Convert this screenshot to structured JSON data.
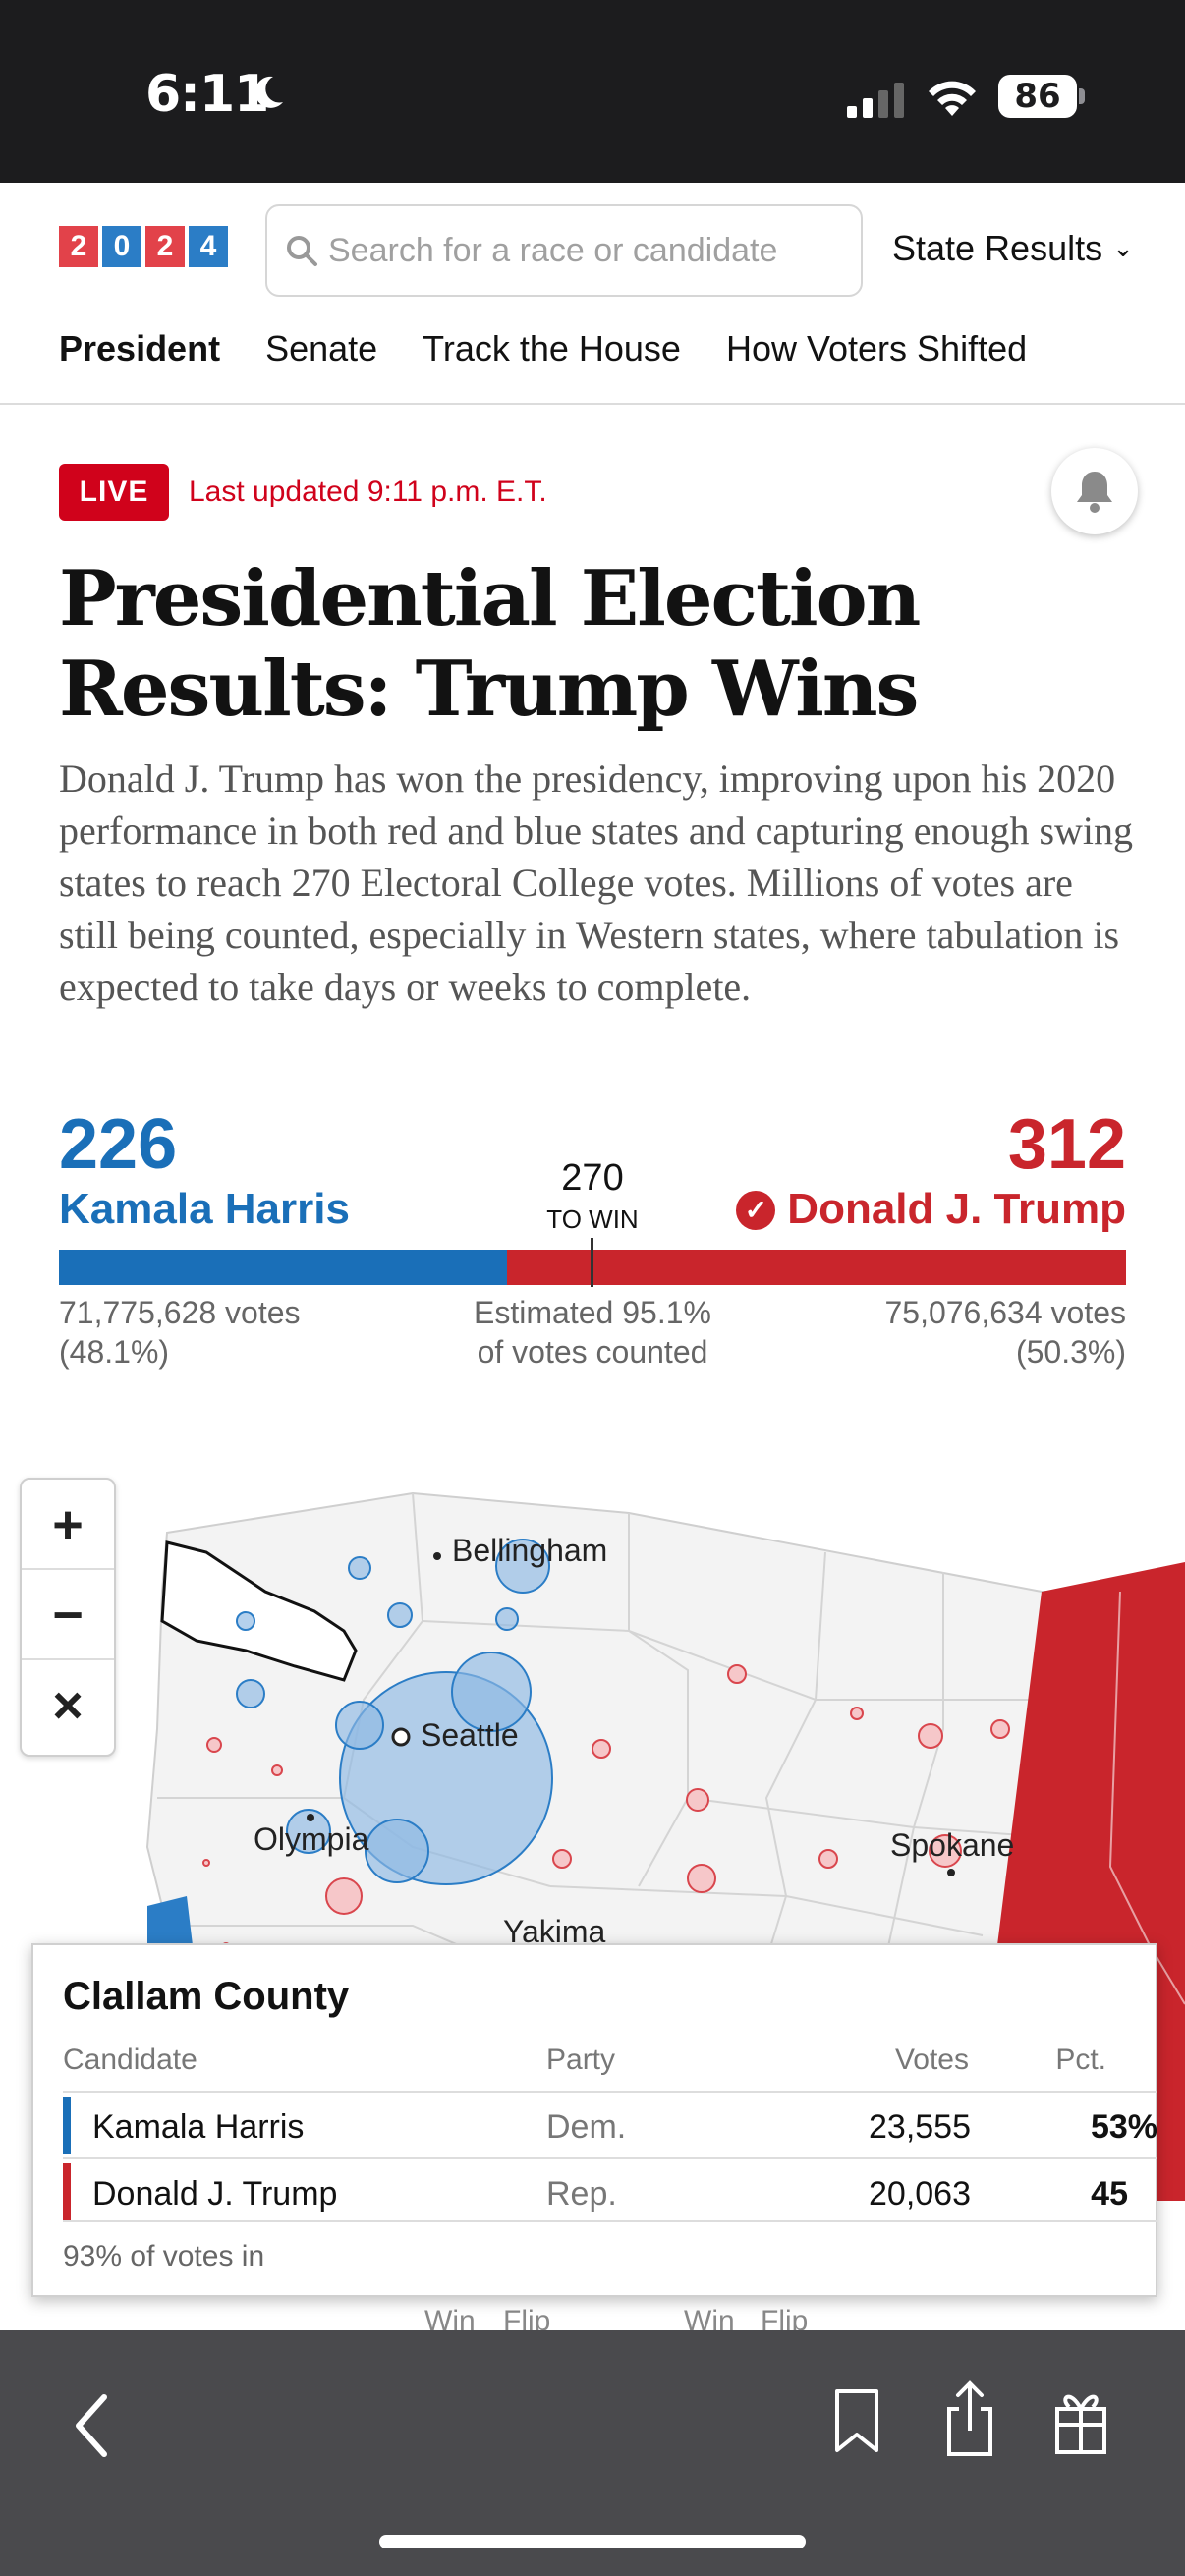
{
  "status_bar": {
    "time": "6:11",
    "battery": "86"
  },
  "header": {
    "logo_digits": [
      "2",
      "0",
      "2",
      "4"
    ],
    "search_placeholder": "Search for a race or candidate",
    "state_results": "State Results",
    "nav": [
      "President",
      "Senate",
      "Track the House",
      "How Voters Shifted"
    ]
  },
  "live": {
    "badge": "LIVE",
    "updated": "Last updated 9:11 p.m. E.T."
  },
  "headline": "Presidential Election Results: Trump Wins",
  "summary": "Donald J. Trump has won the presidency, improving upon his 2020 performance in both red and blue states and capturing enough swing states to reach 270 Electoral College votes. Millions of votes are still being counted, especially in Western states, where tabulation is expected to take days or weeks to complete.",
  "results": {
    "to_win_number": "270",
    "to_win_label": "TO WIN",
    "harris": {
      "ev": "226",
      "name": "Kamala Harris",
      "votes": "71,775,628 votes",
      "pct": "(48.1%)",
      "color": "#1a6fb8"
    },
    "trump": {
      "ev": "312",
      "name": "Donald J. Trump",
      "votes": "75,076,634 votes",
      "pct": "(50.3%)",
      "color": "#c9252c",
      "winner": true
    },
    "counted_line1": "Estimated 95.1%",
    "counted_line2": "of votes counted",
    "dem_share_of_538": 0.42
  },
  "map": {
    "zoom_in": "+",
    "zoom_out": "−",
    "reset": "×",
    "cities": [
      "Bellingham",
      "Seattle",
      "Olympia",
      "Spokane",
      "Yakima"
    ]
  },
  "tooltip": {
    "county": "Clallam County",
    "headers": {
      "candidate": "Candidate",
      "party": "Party",
      "votes": "Votes",
      "pct": "Pct."
    },
    "rows": [
      {
        "candidate": "Kamala Harris",
        "party": "Dem.",
        "votes": "23,555",
        "pct": "53%",
        "color": "#1a6fb8"
      },
      {
        "candidate": "Donald J. Trump",
        "party": "Rep.",
        "votes": "20,063",
        "pct": "45",
        "color": "#c9252c"
      }
    ],
    "footer": "93% of votes in"
  },
  "legend_partial": [
    "Win",
    "Flip",
    "Win",
    "Flip"
  ]
}
